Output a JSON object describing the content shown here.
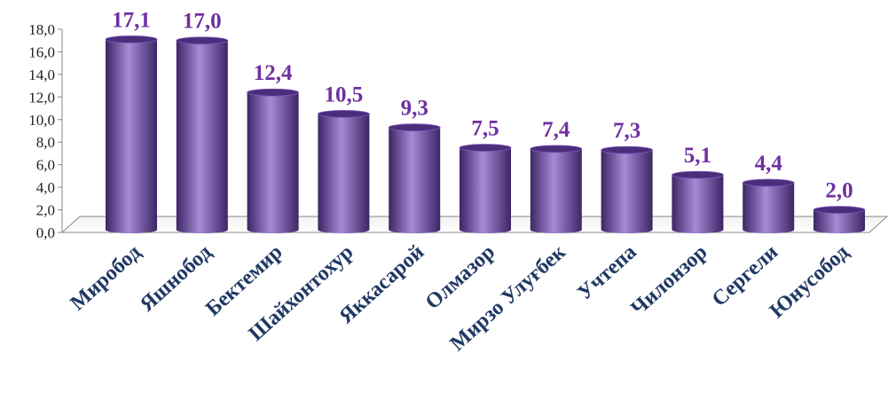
{
  "chart_data": {
    "type": "bar",
    "title": "",
    "xlabel": "",
    "ylabel": "",
    "ylim": [
      0,
      18
    ],
    "yticks": [
      "0,0",
      "2,0",
      "4,0",
      "6,0",
      "8,0",
      "10,0",
      "12,0",
      "14,0",
      "16,0",
      "18,0"
    ],
    "categories": [
      "Миробод",
      "Яшнобод",
      "Бектемир",
      "Шайхонтохур",
      "Яккасарой",
      "Олмазор",
      "Мирзо Улуғбек",
      "Учтепа",
      "Чилонзор",
      "Сергели",
      "Юнусобод"
    ],
    "values": [
      17.1,
      17.0,
      12.4,
      10.5,
      9.3,
      7.5,
      7.4,
      7.3,
      5.1,
      4.4,
      2.0
    ],
    "value_labels": [
      "17,1",
      "17,0",
      "12,4",
      "10,5",
      "9,3",
      "7,5",
      "7,4",
      "7,3",
      "5,1",
      "4,4",
      "2,0"
    ],
    "bar_style": "3d-cylinder",
    "grid": false,
    "legend": "none",
    "colors": {
      "bar_light": "#a68bd6",
      "bar_mid": "#7e5ab8",
      "bar_dark": "#3d2566",
      "bar_top": "#4a2e7c",
      "value_label": "#7030a0",
      "category_label": "#1f3864",
      "axis": "#888888"
    }
  }
}
